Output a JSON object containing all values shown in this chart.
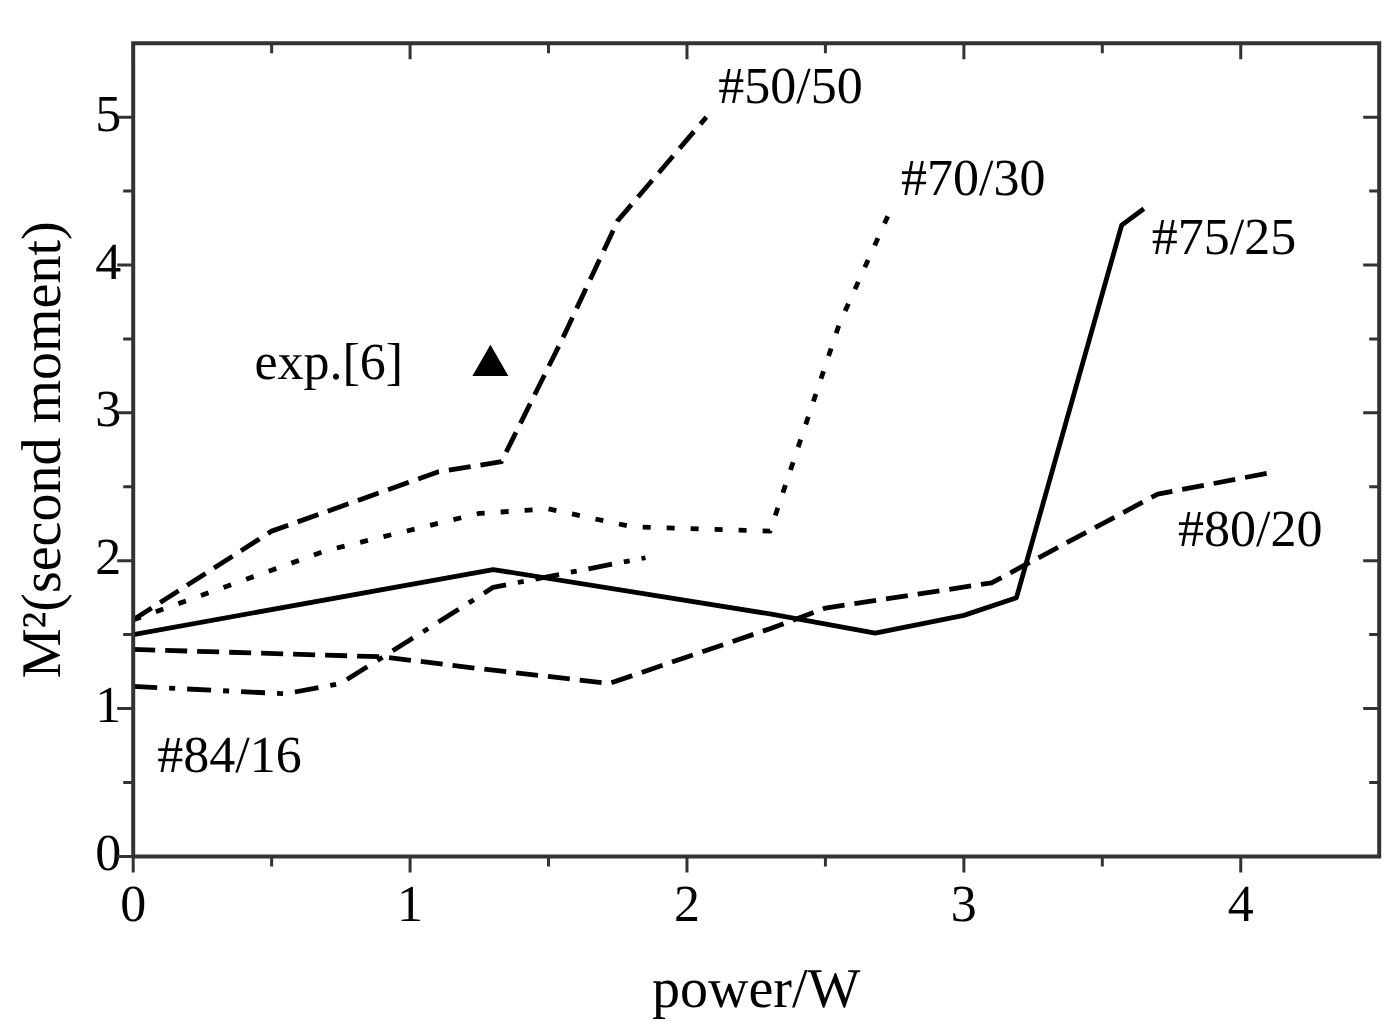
{
  "chart_data": {
    "type": "line",
    "xlabel": "power/W",
    "ylabel": "M²(second moment)",
    "xlim": [
      0,
      4.5
    ],
    "ylim": [
      0,
      5.5
    ],
    "xticks": [
      0,
      {
        "value": 0.5,
        "label": null
      },
      1,
      {
        "value": 1.5,
        "label": null
      },
      2,
      {
        "value": 2.5,
        "label": null
      },
      3,
      {
        "value": 3.5,
        "label": null
      },
      4
    ],
    "yticks": [
      0,
      {
        "value": 0.5,
        "label": null
      },
      1,
      {
        "value": 1.5,
        "label": null
      },
      2,
      {
        "value": 2.5,
        "label": null
      },
      3,
      {
        "value": 3.5,
        "label": null
      },
      4,
      {
        "value": 4.5,
        "label": null
      },
      5
    ],
    "grid": false,
    "legend": false,
    "marker": "none",
    "series": [
      {
        "name": "#50/50",
        "color": "#000000",
        "line_style": "dashed",
        "x": [
          0,
          0.5,
          1.1,
          1.33,
          1.55,
          1.75,
          2.07
        ],
        "values": [
          1.6,
          2.2,
          2.6,
          2.67,
          3.5,
          4.3,
          5.0
        ]
      },
      {
        "name": "#70/30",
        "color": "#000000",
        "line_style": "dotted",
        "x": [
          0,
          0.7,
          1.25,
          1.5,
          1.8,
          2.3,
          2.55,
          2.73
        ],
        "values": [
          1.6,
          2.07,
          2.32,
          2.35,
          2.23,
          2.2,
          3.6,
          4.35
        ]
      },
      {
        "name": "#75/25",
        "color": "#000000",
        "line_style": "solid",
        "x": [
          0,
          1.3,
          2.3,
          2.68,
          3.0,
          3.19,
          3.57,
          3.65
        ],
        "values": [
          1.5,
          1.94,
          1.64,
          1.51,
          1.63,
          1.75,
          4.27,
          4.38
        ]
      },
      {
        "name": "#80/20",
        "color": "#000000",
        "line_style": "dashed",
        "x": [
          0,
          0.9,
          1.25,
          1.72,
          2.3,
          2.5,
          3.1,
          3.7,
          4.12
        ],
        "values": [
          1.4,
          1.35,
          1.27,
          1.17,
          1.54,
          1.68,
          1.85,
          2.45,
          2.6
        ]
      },
      {
        "name": "#84/16",
        "color": "#000000",
        "line_style": "dashdot",
        "x": [
          0,
          0.55,
          0.75,
          1.2,
          1.3,
          1.85
        ],
        "values": [
          1.15,
          1.1,
          1.17,
          1.7,
          1.82,
          2.02
        ]
      },
      {
        "name": "exp.[6]",
        "type": "scatter",
        "marker": "triangle",
        "color": "#000000",
        "x": [
          1.29
        ],
        "values": [
          3.32
        ]
      }
    ]
  }
}
